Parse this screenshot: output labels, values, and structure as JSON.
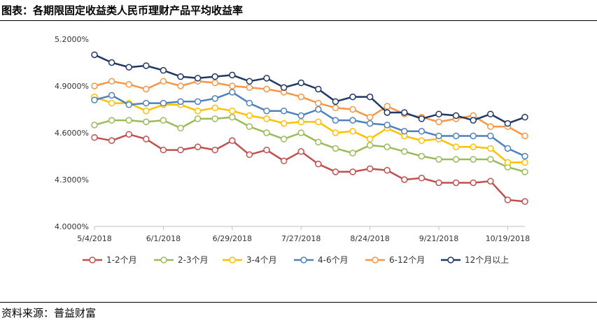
{
  "header": {
    "title": "图表：各期限固定收益类人民币理财产品平均收益率"
  },
  "footer": {
    "source": "资料来源：普益财富"
  },
  "chart_data": {
    "type": "line",
    "ylim": [
      4.0,
      5.2
    ],
    "y_ticks": [
      4.0,
      4.3,
      4.6,
      4.9,
      5.2
    ],
    "y_tick_labels": [
      "4.0000%",
      "4.3000%",
      "4.6000%",
      "4.9000%",
      "5.2000%"
    ],
    "x_tick_labels": [
      "5/4/2018",
      "6/1/2018",
      "6/29/2018",
      "7/27/2018",
      "8/24/2018",
      "9/21/2018",
      "10/19/2018"
    ],
    "x": [
      "2018-05-04",
      "2018-05-11",
      "2018-05-18",
      "2018-05-25",
      "2018-06-01",
      "2018-06-08",
      "2018-06-15",
      "2018-06-22",
      "2018-06-29",
      "2018-07-06",
      "2018-07-13",
      "2018-07-20",
      "2018-07-27",
      "2018-08-03",
      "2018-08-10",
      "2018-08-17",
      "2018-08-24",
      "2018-08-31",
      "2018-09-07",
      "2018-09-14",
      "2018-09-21",
      "2018-09-28",
      "2018-10-05",
      "2018-10-12",
      "2018-10-19",
      "2018-10-26"
    ],
    "legend_position": "bottom",
    "series": [
      {
        "name": "1-2个月",
        "color": "#C0504D",
        "values": [
          4.57,
          4.55,
          4.59,
          4.56,
          4.49,
          4.49,
          4.51,
          4.49,
          4.55,
          4.46,
          4.49,
          4.42,
          4.48,
          4.4,
          4.35,
          4.35,
          4.37,
          4.36,
          4.3,
          4.31,
          4.28,
          4.28,
          4.28,
          4.29,
          4.17,
          4.16
        ]
      },
      {
        "name": "2-3个月",
        "color": "#9BBB59",
        "values": [
          4.65,
          4.68,
          4.68,
          4.67,
          4.68,
          4.63,
          4.69,
          4.69,
          4.7,
          4.64,
          4.6,
          4.56,
          4.6,
          4.54,
          4.5,
          4.47,
          4.52,
          4.51,
          4.48,
          4.45,
          4.43,
          4.43,
          4.43,
          4.43,
          4.38,
          4.35
        ]
      },
      {
        "name": "3-4个月",
        "color": "#FFC000",
        "values": [
          4.83,
          4.79,
          4.79,
          4.74,
          4.78,
          4.78,
          4.74,
          4.76,
          4.74,
          4.71,
          4.69,
          4.66,
          4.67,
          4.67,
          4.6,
          4.61,
          4.56,
          4.63,
          4.58,
          4.55,
          4.56,
          4.51,
          4.51,
          4.5,
          4.41,
          4.41
        ]
      },
      {
        "name": "4-6个月",
        "color": "#4F81BD",
        "values": [
          4.81,
          4.84,
          4.78,
          4.79,
          4.79,
          4.8,
          4.8,
          4.82,
          4.86,
          4.79,
          4.74,
          4.74,
          4.71,
          4.75,
          4.68,
          4.68,
          4.66,
          4.65,
          4.61,
          4.61,
          4.58,
          4.58,
          4.58,
          4.58,
          4.5,
          4.45
        ]
      },
      {
        "name": "6-12个月",
        "color": "#F79646",
        "values": [
          4.9,
          4.93,
          4.91,
          4.88,
          4.93,
          4.9,
          4.93,
          4.92,
          4.9,
          4.89,
          4.88,
          4.86,
          4.83,
          4.79,
          4.76,
          4.75,
          4.7,
          4.77,
          4.72,
          4.7,
          4.67,
          4.69,
          4.71,
          4.64,
          4.64,
          4.58
        ]
      },
      {
        "name": "12个月以上",
        "color": "#1F3864",
        "values": [
          5.1,
          5.05,
          5.02,
          5.03,
          5.0,
          4.96,
          4.95,
          4.96,
          4.97,
          4.93,
          4.95,
          4.89,
          4.92,
          4.88,
          4.8,
          4.83,
          4.83,
          4.73,
          4.73,
          4.69,
          4.72,
          4.71,
          4.68,
          4.72,
          4.66,
          4.7
        ]
      }
    ]
  }
}
